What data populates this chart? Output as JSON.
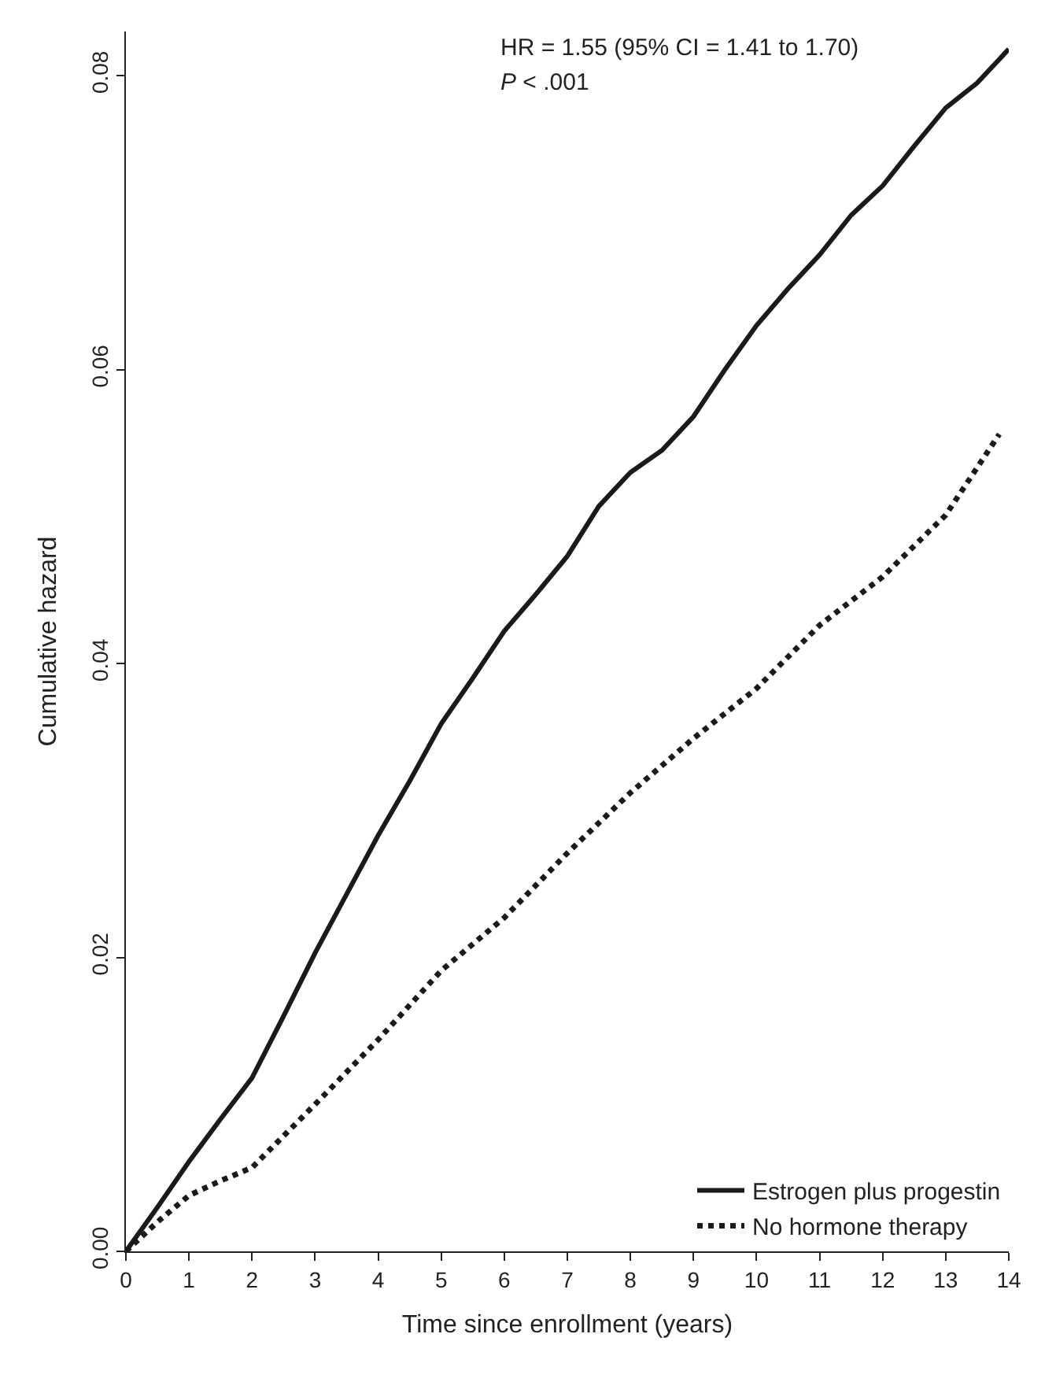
{
  "chart_data": {
    "type": "line",
    "xlabel": "Time since enrollment (years)",
    "ylabel": "Cumulative hazard",
    "annotations": [
      "HR = 1.55 (95% CI = 1.41 to 1.70)",
      "P < .001"
    ],
    "series": [
      {
        "name": "Estrogen plus progestin",
        "color": "#1a1a1a",
        "line_style": "solid",
        "x": [
          0,
          0.5,
          1,
          1.5,
          2,
          2.5,
          3,
          3.5,
          4,
          4.5,
          5,
          5.5,
          6,
          6.5,
          7,
          7.5,
          8,
          8.5,
          9,
          9.5,
          10,
          10.5,
          11,
          11.5,
          12,
          12.5,
          13,
          13.5,
          14
        ],
        "values": [
          0,
          0.003,
          0.0061,
          0.009,
          0.0118,
          0.016,
          0.0203,
          0.0243,
          0.0283,
          0.032,
          0.0359,
          0.039,
          0.0422,
          0.0447,
          0.0473,
          0.0507,
          0.053,
          0.0545,
          0.0568,
          0.06,
          0.063,
          0.0655,
          0.0678,
          0.0705,
          0.0725,
          0.0752,
          0.0778,
          0.0795,
          0.0818
        ]
      },
      {
        "name": "No hormone therapy",
        "color": "#1a1a1a",
        "line_style": "dotted",
        "x": [
          0,
          0.5,
          1,
          1.5,
          2,
          3,
          4,
          5,
          6,
          7,
          8,
          9,
          10,
          11,
          12,
          13,
          13.85
        ],
        "values": [
          0,
          0.002,
          0.0038,
          0.0048,
          0.0057,
          0.01,
          0.0144,
          0.0191,
          0.0227,
          0.0271,
          0.0312,
          0.0349,
          0.0383,
          0.0426,
          0.0459,
          0.0501,
          0.0556
        ]
      }
    ],
    "xlim": [
      0,
      14
    ],
    "xticks": [
      0,
      1,
      2,
      3,
      4,
      5,
      6,
      7,
      8,
      9,
      10,
      11,
      12,
      13,
      14
    ],
    "ylim": [
      0,
      0.083
    ],
    "yticks": [
      {
        "value": 0,
        "label": "0.00"
      },
      {
        "value": 0.02,
        "label": "0.02"
      },
      {
        "value": 0.04,
        "label": "0.04"
      },
      {
        "value": 0.06,
        "label": "0.06"
      },
      {
        "value": 0.08,
        "label": "0.08"
      }
    ],
    "legend": "bottom right",
    "marker": "none"
  }
}
